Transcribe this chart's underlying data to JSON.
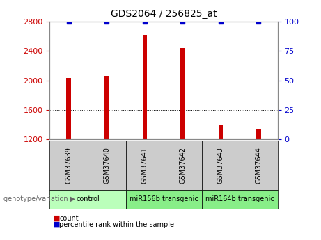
{
  "title": "GDS2064 / 256825_at",
  "samples": [
    "GSM37639",
    "GSM37640",
    "GSM37641",
    "GSM37642",
    "GSM37643",
    "GSM37644"
  ],
  "counts": [
    2030,
    2060,
    2620,
    2440,
    1390,
    1340
  ],
  "percentiles": [
    100,
    100,
    100,
    100,
    100,
    100
  ],
  "ylim_left": [
    1200,
    2800
  ],
  "yticks_left": [
    1200,
    1600,
    2000,
    2400,
    2800
  ],
  "ylim_right": [
    0,
    100
  ],
  "yticks_right": [
    0,
    25,
    50,
    75,
    100
  ],
  "bar_color": "#CC0000",
  "dot_color": "#0000CC",
  "bar_width": 0.12,
  "groups": [
    {
      "label": "control",
      "samples": [
        0,
        1
      ],
      "color": "#BBFFBB"
    },
    {
      "label": "miR156b transgenic",
      "samples": [
        2,
        3
      ],
      "color": "#88EE88"
    },
    {
      "label": "miR164b transgenic",
      "samples": [
        4,
        5
      ],
      "color": "#88EE88"
    }
  ],
  "group_label": "genotype/variation",
  "legend_count_label": "count",
  "legend_pct_label": "percentile rank within the sample",
  "background_color": "#FFFFFF",
  "plot_bg_color": "#FFFFFF",
  "left_tick_color": "#CC0000",
  "right_tick_color": "#0000CC",
  "sample_box_color": "#CCCCCC",
  "title_fontsize": 10,
  "tick_fontsize": 8,
  "sample_fontsize": 7,
  "group_fontsize": 7,
  "legend_fontsize": 7
}
